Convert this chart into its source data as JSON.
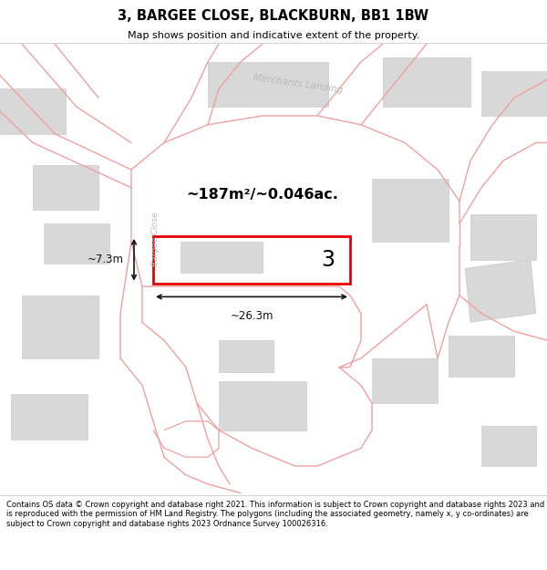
{
  "title": "3, BARGEE CLOSE, BLACKBURN, BB1 1BW",
  "subtitle": "Map shows position and indicative extent of the property.",
  "footer": "Contains OS data © Crown copyright and database right 2021. This information is subject to Crown copyright and database rights 2023 and is reproduced with the permission of HM Land Registry. The polygons (including the associated geometry, namely x, y co-ordinates) are subject to Crown copyright and database rights 2023 Ordnance Survey 100026316.",
  "map_bg": "#ffffff",
  "road_color": "#f0a0a0",
  "building_color": "#d8d8d8",
  "building_edge": "#cccccc",
  "highlight_color": "#e60000",
  "dim_color": "#111111",
  "street_label_color": "#b8b8b8",
  "area_text": "~187m²/~0.046ac.",
  "number_label": "3",
  "width_label": "~26.3m",
  "height_label": "~7.3m"
}
